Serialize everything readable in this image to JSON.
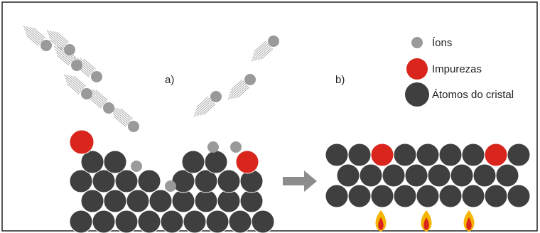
{
  "panels": {
    "a": "a)",
    "b": "b)"
  },
  "legend": {
    "items": [
      {
        "label": "Íons"
      },
      {
        "label": "Impurezas"
      },
      {
        "label": "Átomos do cristal"
      }
    ]
  }
}
